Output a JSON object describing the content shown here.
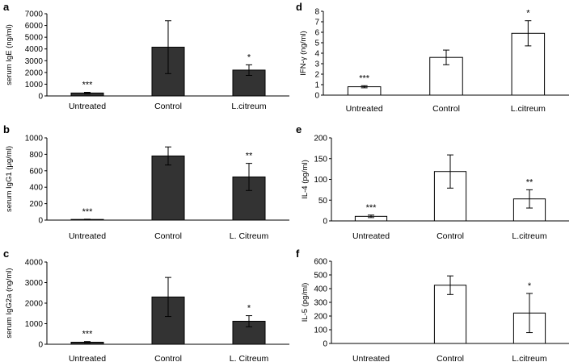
{
  "chart_data": [
    {
      "type": "bar",
      "panel": "a",
      "ylabel": "serum IgE (ng/ml)",
      "categories": [
        "Untreated",
        "Control",
        "L.citreum"
      ],
      "values": [
        250,
        4150,
        2200
      ],
      "errors": [
        60,
        2250,
        450
      ],
      "significance": [
        "***",
        "",
        "*"
      ],
      "ylim": [
        0,
        7000
      ],
      "yticks": [
        "0",
        "1000",
        "2000",
        "3000",
        "4000",
        "5000",
        "6000",
        "7000"
      ],
      "bar_color": "#333333"
    },
    {
      "type": "bar",
      "panel": "b",
      "ylabel": "serum IgG1 (μg/ml)",
      "categories": [
        "Untreated",
        "Control",
        "L. Citreum"
      ],
      "values": [
        8,
        780,
        525
      ],
      "errors": [
        3,
        110,
        165
      ],
      "significance": [
        "***",
        "",
        "**"
      ],
      "ylim": [
        0,
        1000
      ],
      "yticks": [
        "0",
        "200",
        "400",
        "600",
        "800",
        "1000"
      ],
      "bar_color": "#333333"
    },
    {
      "type": "bar",
      "panel": "c",
      "ylabel": "serum IgG2a (ng/ml)",
      "categories": [
        "Untreated",
        "Control",
        "L. Citreum"
      ],
      "values": [
        100,
        2300,
        1120
      ],
      "errors": [
        30,
        950,
        270
      ],
      "significance": [
        "***",
        "",
        "*"
      ],
      "ylim": [
        0,
        4000
      ],
      "yticks": [
        "0",
        "1000",
        "2000",
        "3000",
        "4000"
      ],
      "bar_color": "#333333"
    },
    {
      "type": "bar",
      "panel": "d",
      "ylabel": "IFN-γ (ng/ml)",
      "categories": [
        "Untreated",
        "Control",
        "L.citreum"
      ],
      "values": [
        0.8,
        3.6,
        5.9
      ],
      "errors": [
        0.1,
        0.7,
        1.2
      ],
      "significance": [
        "***",
        "",
        "*"
      ],
      "ylim": [
        0,
        8
      ],
      "yticks": [
        "0",
        "1",
        "2",
        "3",
        "4",
        "5",
        "6",
        "7",
        "8"
      ],
      "bar_color": "#ffffff"
    },
    {
      "type": "bar",
      "panel": "e",
      "ylabel": "IL-4 (pg/ml)",
      "categories": [
        "Untreated",
        "Control",
        "L.citreum"
      ],
      "values": [
        11,
        119,
        53
      ],
      "errors": [
        3,
        40,
        22
      ],
      "significance": [
        "***",
        "",
        "**"
      ],
      "ylim": [
        0,
        200
      ],
      "yticks": [
        "0",
        "50",
        "100",
        "150",
        "200"
      ],
      "bar_color": "#ffffff"
    },
    {
      "type": "bar",
      "panel": "f",
      "ylabel": "IL-5 (pg/ml)",
      "categories": [
        "Untreated",
        "Control",
        "L.citreum"
      ],
      "values": [
        0,
        425,
        222
      ],
      "errors": [
        0,
        68,
        143
      ],
      "significance": [
        "",
        "",
        "*"
      ],
      "ylim": [
        0,
        600
      ],
      "yticks": [
        "0",
        "100",
        "200",
        "300",
        "400",
        "500",
        "600"
      ],
      "bar_color": "#ffffff"
    }
  ]
}
